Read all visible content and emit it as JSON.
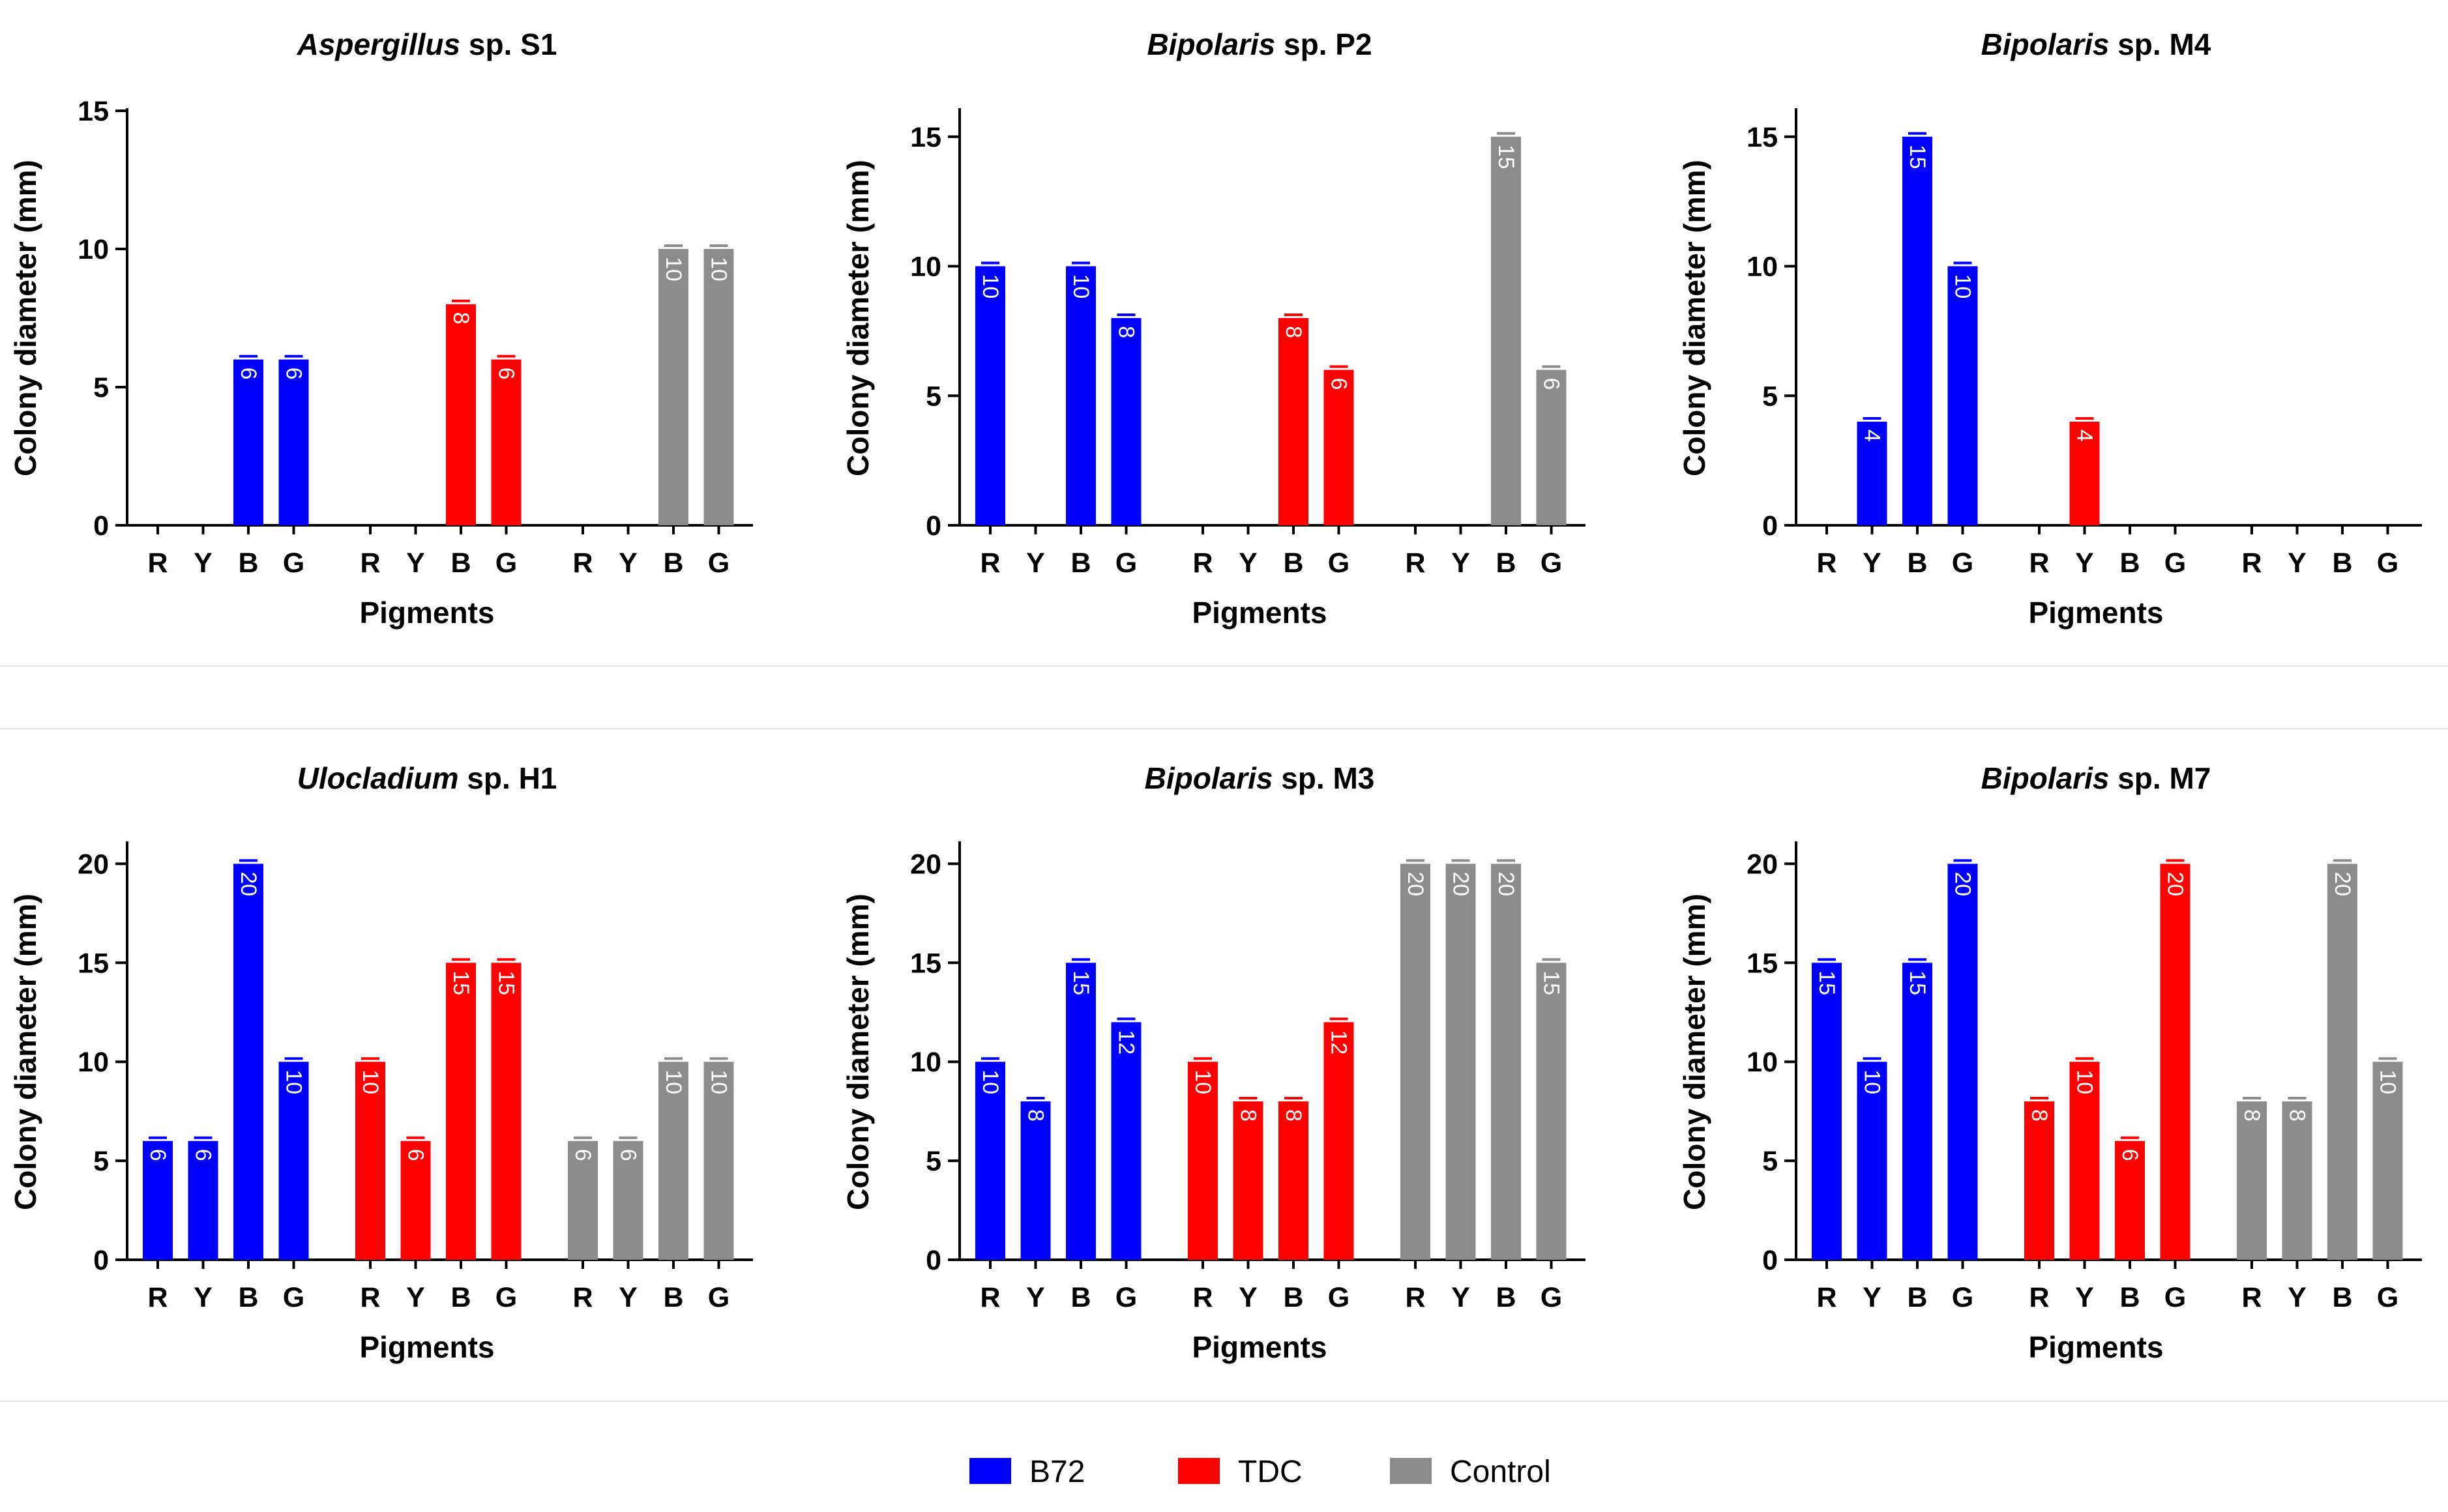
{
  "legend": [
    {
      "name": "B72",
      "color": "#0000ff"
    },
    {
      "name": "TDC",
      "color": "#ff0000"
    },
    {
      "name": "Control",
      "color": "#8c8c8c"
    }
  ],
  "chart_data": [
    {
      "type": "bar",
      "title_italic": "Aspergillus",
      "title_rest": " sp. S1",
      "xlabel": "Pigments",
      "ylabel": "Colony diameter (mm)",
      "ylim": [
        0,
        15
      ],
      "yticks": [
        0,
        5,
        10,
        15
      ],
      "categories": [
        "R",
        "Y",
        "B",
        "G"
      ],
      "series": [
        {
          "name": "B72",
          "values": [
            0,
            0,
            6,
            6
          ],
          "labels": [
            "",
            "",
            "6",
            "6"
          ]
        },
        {
          "name": "TDC",
          "values": [
            0,
            0,
            8,
            6
          ],
          "labels": [
            "",
            "",
            "8",
            "6"
          ]
        },
        {
          "name": "Control",
          "values": [
            0,
            0,
            10,
            10
          ],
          "labels": [
            "",
            "",
            "10",
            "10"
          ]
        }
      ]
    },
    {
      "type": "bar",
      "title_italic": "Bipolaris",
      "title_rest": " sp. P2",
      "xlabel": "Pigments",
      "ylabel": "Colony diameter (mm)",
      "ylim": [
        0,
        16
      ],
      "yticks": [
        0,
        5,
        10,
        15
      ],
      "categories": [
        "R",
        "Y",
        "B",
        "G"
      ],
      "series": [
        {
          "name": "B72",
          "values": [
            10,
            0,
            10,
            8
          ],
          "labels": [
            "10",
            "",
            "10",
            "8"
          ]
        },
        {
          "name": "TDC",
          "values": [
            0,
            0,
            8,
            6
          ],
          "labels": [
            "",
            "",
            "8",
            "6"
          ]
        },
        {
          "name": "Control",
          "values": [
            0,
            0,
            15,
            6
          ],
          "labels": [
            "",
            "",
            "15",
            "6"
          ]
        }
      ]
    },
    {
      "type": "bar",
      "title_italic": "Bipolaris",
      "title_rest": " sp. M4",
      "xlabel": "Pigments",
      "ylabel": "Colony diameter (mm)",
      "ylim": [
        0,
        16
      ],
      "yticks": [
        0,
        5,
        10,
        15
      ],
      "categories": [
        "R",
        "Y",
        "B",
        "G"
      ],
      "series": [
        {
          "name": "B72",
          "values": [
            0,
            4,
            15,
            10
          ],
          "labels": [
            "",
            "4",
            "15",
            "10"
          ]
        },
        {
          "name": "TDC",
          "values": [
            0,
            4,
            0,
            0
          ],
          "labels": [
            "",
            "4",
            "",
            ""
          ]
        },
        {
          "name": "Control",
          "values": [
            0,
            0,
            0,
            0
          ],
          "labels": [
            "",
            "",
            "",
            ""
          ]
        }
      ]
    },
    {
      "type": "bar",
      "title_italic": "Ulocladium",
      "title_rest": " sp. H1",
      "xlabel": "Pigments",
      "ylabel": "Colony diameter (mm)",
      "ylim": [
        0,
        21
      ],
      "yticks": [
        0,
        5,
        10,
        15,
        20
      ],
      "categories": [
        "R",
        "Y",
        "B",
        "G"
      ],
      "series": [
        {
          "name": "B72",
          "values": [
            6,
            6,
            20,
            10
          ],
          "labels": [
            "6",
            "6",
            "20",
            "10"
          ]
        },
        {
          "name": "TDC",
          "values": [
            10,
            6,
            15,
            15
          ],
          "labels": [
            "10",
            "6",
            "15",
            "15"
          ]
        },
        {
          "name": "Control",
          "values": [
            6,
            6,
            10,
            10
          ],
          "labels": [
            "6",
            "6",
            "10",
            "10"
          ]
        }
      ]
    },
    {
      "type": "bar",
      "title_italic": "Bipolaris",
      "title_rest": " sp. M3",
      "xlabel": "Pigments",
      "ylabel": "Colony diameter (mm)",
      "ylim": [
        0,
        21
      ],
      "yticks": [
        0,
        5,
        10,
        15,
        20
      ],
      "categories": [
        "R",
        "Y",
        "B",
        "G"
      ],
      "series": [
        {
          "name": "B72",
          "values": [
            10,
            8,
            15,
            12
          ],
          "labels": [
            "10",
            "8",
            "15",
            "12"
          ]
        },
        {
          "name": "TDC",
          "values": [
            10,
            8,
            8,
            12
          ],
          "labels": [
            "10",
            "8",
            "8",
            "12"
          ]
        },
        {
          "name": "Control",
          "values": [
            20,
            20,
            20,
            15
          ],
          "labels": [
            "20",
            "20",
            "20",
            "15"
          ]
        }
      ]
    },
    {
      "type": "bar",
      "title_italic": "Bipolaris",
      "title_rest": " sp. M7",
      "xlabel": "Pigments",
      "ylabel": "Colony diameter (mm)",
      "ylim": [
        0,
        21
      ],
      "yticks": [
        0,
        5,
        10,
        15,
        20
      ],
      "categories": [
        "R",
        "Y",
        "B",
        "G"
      ],
      "series": [
        {
          "name": "B72",
          "values": [
            15,
            10,
            15,
            20
          ],
          "labels": [
            "15",
            "10",
            "15",
            "20"
          ]
        },
        {
          "name": "TDC",
          "values": [
            8,
            10,
            6,
            20
          ],
          "labels": [
            "8",
            "10",
            "6",
            "20"
          ]
        },
        {
          "name": "Control",
          "values": [
            8,
            8,
            20,
            10
          ],
          "labels": [
            "8",
            "8",
            "20",
            "10"
          ]
        }
      ]
    }
  ]
}
